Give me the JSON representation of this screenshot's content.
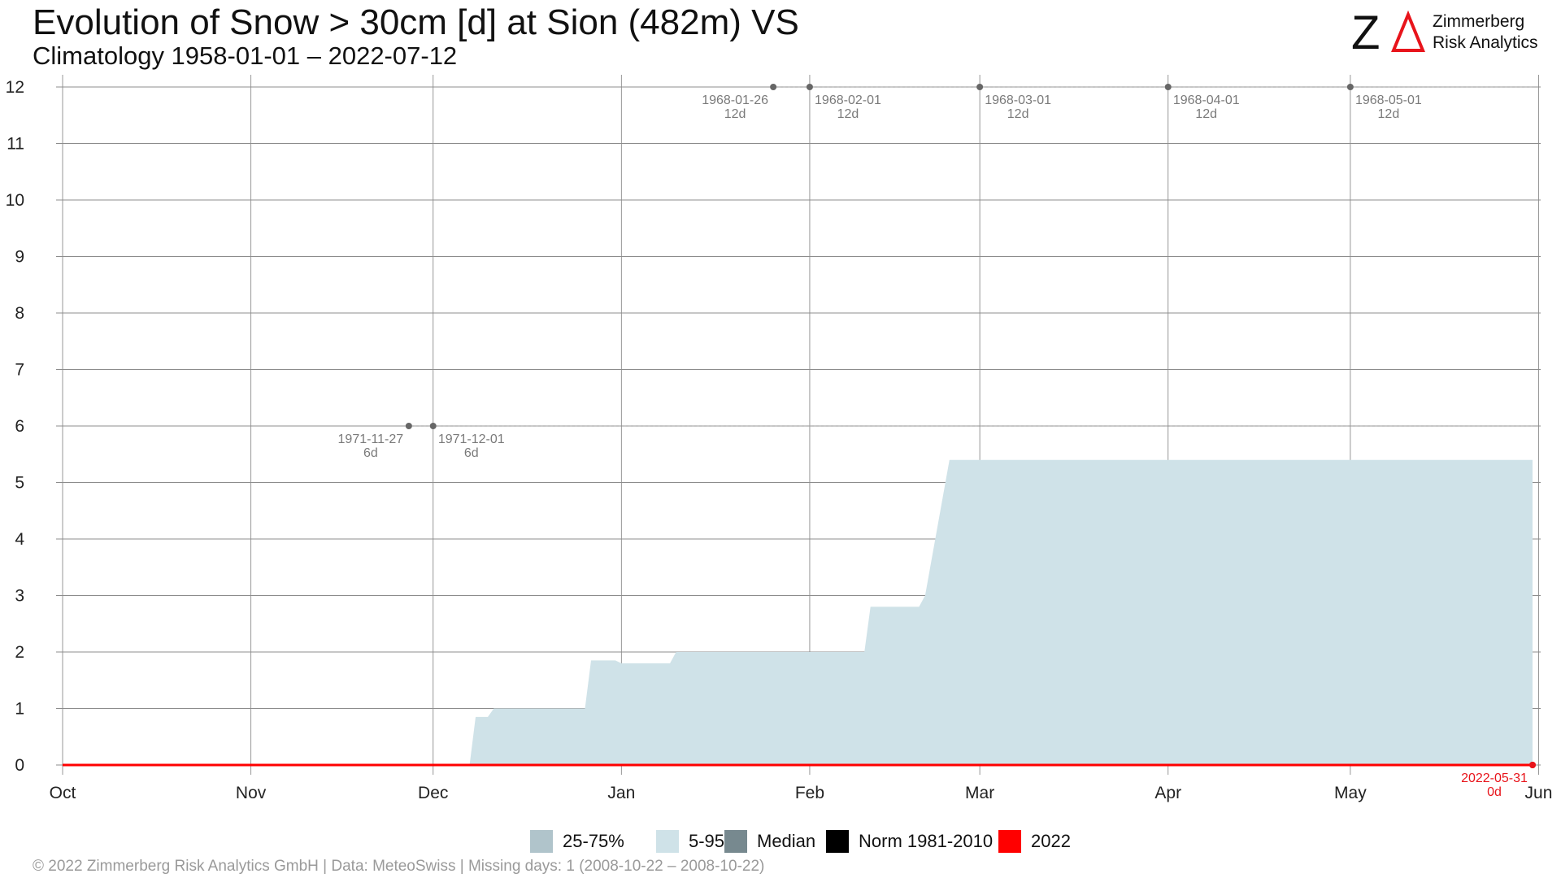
{
  "header": {
    "title": "Evolution of Snow > 30cm [d] at Sion (482m) VS",
    "subtitle": "Climatology 1958-01-01 – 2022-07-12"
  },
  "logo": {
    "mark": "ZA",
    "line1": "Zimmerberg",
    "line2": "Risk Analytics",
    "accent_color": "#e8141b"
  },
  "legend": [
    {
      "label": "25-75%",
      "color": "#b0c4cb"
    },
    {
      "label": "5-95%",
      "color": "#cfe2e8"
    },
    {
      "label": "Median",
      "color": "#77898f"
    },
    {
      "label": "Norm 1981-2010",
      "color": "#000000"
    },
    {
      "label": "2022",
      "color": "#ff0000"
    }
  ],
  "footer": "©  2022 Zimmerberg Risk Analytics GmbH | Data: MeteoSwiss | Missing days: 1 (2008-10-22 – 2008-10-22)",
  "chart_data": {
    "type": "area",
    "x_unit": "date",
    "xlim": [
      "10-01",
      "05-31"
    ],
    "ylim": [
      0,
      12
    ],
    "y_ticks": [
      "0",
      "1",
      "2",
      "3",
      "4",
      "5",
      "6",
      "7",
      "8",
      "9",
      "10",
      "11",
      "12"
    ],
    "x_tick_labels": [
      {
        "date": "10-01",
        "label": "Oct"
      },
      {
        "date": "11-01",
        "label": "Nov"
      },
      {
        "date": "12-01",
        "label": "Dec"
      },
      {
        "date": "01-01",
        "label": "Jan"
      },
      {
        "date": "02-01",
        "label": "Feb"
      },
      {
        "date": "03-01",
        "label": "Mar"
      },
      {
        "date": "04-01",
        "label": "Apr"
      },
      {
        "date": "05-01",
        "label": "May"
      },
      {
        "date": "06-01",
        "label": "Jun"
      }
    ],
    "grid": true,
    "legend_position": "bottom",
    "series": [
      {
        "name": "5-95%",
        "color": "#cfe2e8",
        "points": [
          {
            "date": "12-07",
            "value": 0
          },
          {
            "date": "12-08",
            "value": 0.85
          },
          {
            "date": "12-10",
            "value": 0.85
          },
          {
            "date": "12-11",
            "value": 1
          },
          {
            "date": "12-26",
            "value": 1
          },
          {
            "date": "12-27",
            "value": 1.85
          },
          {
            "date": "12-31",
            "value": 1.85
          },
          {
            "date": "01-01",
            "value": 1.8
          },
          {
            "date": "01-09",
            "value": 1.8
          },
          {
            "date": "01-10",
            "value": 2
          },
          {
            "date": "02-10",
            "value": 2
          },
          {
            "date": "02-11",
            "value": 2.8
          },
          {
            "date": "02-19",
            "value": 2.8
          },
          {
            "date": "02-20",
            "value": 3
          },
          {
            "date": "02-24",
            "value": 5.4
          },
          {
            "date": "05-31",
            "value": 5.4
          }
        ]
      },
      {
        "name": "2022",
        "color": "#ff0000",
        "points": [
          {
            "date": "10-01",
            "value": 0
          },
          {
            "date": "05-31",
            "value": 0
          }
        ]
      }
    ],
    "annotations": [
      {
        "date": "1971-11-27",
        "value": "6d",
        "y": 6,
        "align": "left"
      },
      {
        "date": "1971-12-01",
        "value": "6d",
        "y": 6,
        "align": "right"
      },
      {
        "date": "1968-01-26",
        "value": "12d",
        "y": 12,
        "align": "left"
      },
      {
        "date": "1968-02-01",
        "value": "12d",
        "y": 12,
        "align": "right"
      },
      {
        "date": "1968-03-01",
        "value": "12d",
        "y": 12,
        "align": "right"
      },
      {
        "date": "1968-04-01",
        "value": "12d",
        "y": 12,
        "align": "right"
      },
      {
        "date": "1968-05-01",
        "value": "12d",
        "y": 12,
        "align": "right"
      },
      {
        "date": "2022-05-31",
        "value": "0d",
        "y": 0,
        "align": "left",
        "color": "#e8141b"
      }
    ]
  }
}
